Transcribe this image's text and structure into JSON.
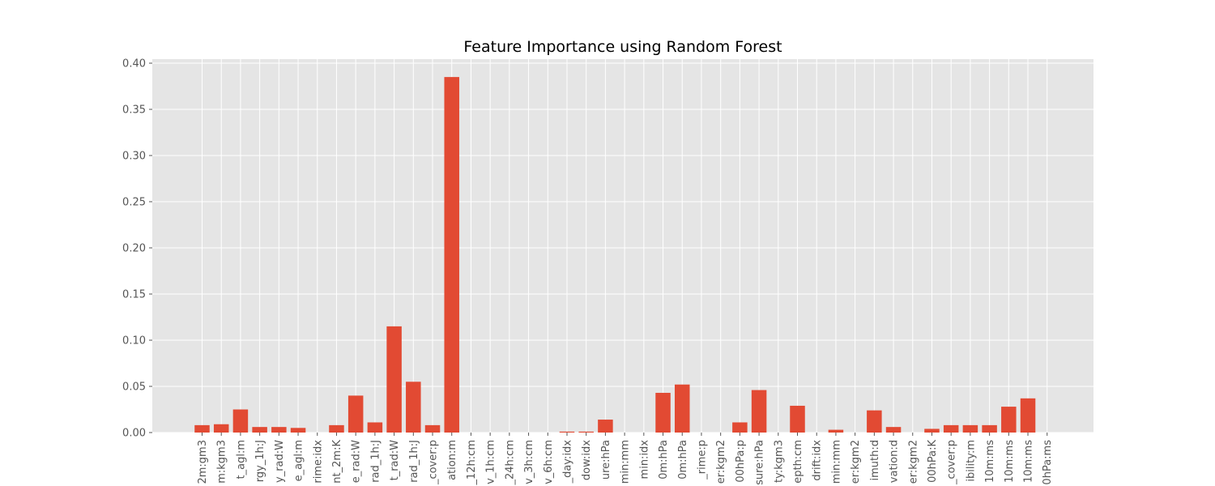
{
  "chart_data": {
    "type": "bar",
    "title": "Feature Importance using Random Forest",
    "xlabel": "",
    "ylabel": "",
    "ylim": [
      0,
      0.4
    ],
    "yticks": [
      "0.00",
      "0.05",
      "0.10",
      "0.15",
      "0.20",
      "0.25",
      "0.30",
      "0.35",
      "0.40"
    ],
    "grid": true,
    "bar_color": "#E24A33",
    "background_color": "#E5E5E5",
    "categories": [
      "2m:gm3",
      "m:kgm3",
      "t_agl:m",
      "rgy_1h:J",
      "y_rad:W",
      "e_agl:m",
      "rime:idx",
      "nt_2m:K",
      "e_rad:W",
      "rad_1h:J",
      "t_rad:W",
      "rad_1h:J",
      "_cover:p",
      "ation:m",
      "_12h:cm",
      "v_1h:cm",
      "_24h:cm",
      "v_3h:cm",
      "v_6h:cm",
      "_day:idx",
      "dow:idx",
      "ure:hPa",
      "min:mm",
      "min:idx",
      "0m:hPa",
      "0m:hPa",
      "_rime:p",
      "er:kgm2",
      "00hPa:p",
      "sure:hPa",
      "ty:kgm3",
      "epth:cm",
      "drift:idx",
      "min:mm",
      "er:kgm2",
      "imuth:d",
      "vation:d",
      "er:kgm2",
      "00hPa:K",
      "_cover:p",
      "ibility:m",
      "10m:ms",
      "10m:ms",
      "10m:ms",
      "0hPa:ms"
    ],
    "values": [
      0.008,
      0.009,
      0.025,
      0.006,
      0.006,
      0.005,
      0.0,
      0.008,
      0.04,
      0.011,
      0.115,
      0.055,
      0.008,
      0.385,
      0.0,
      0.0,
      0.0,
      0.0,
      0.0,
      0.001,
      0.001,
      0.014,
      0.0,
      0.0,
      0.043,
      0.052,
      0.0,
      0.0,
      0.011,
      0.046,
      0.0,
      0.029,
      0.0,
      0.003,
      0.0,
      0.024,
      0.006,
      0.0,
      0.004,
      0.008,
      0.008,
      0.008,
      0.028,
      0.037,
      0.0
    ]
  }
}
